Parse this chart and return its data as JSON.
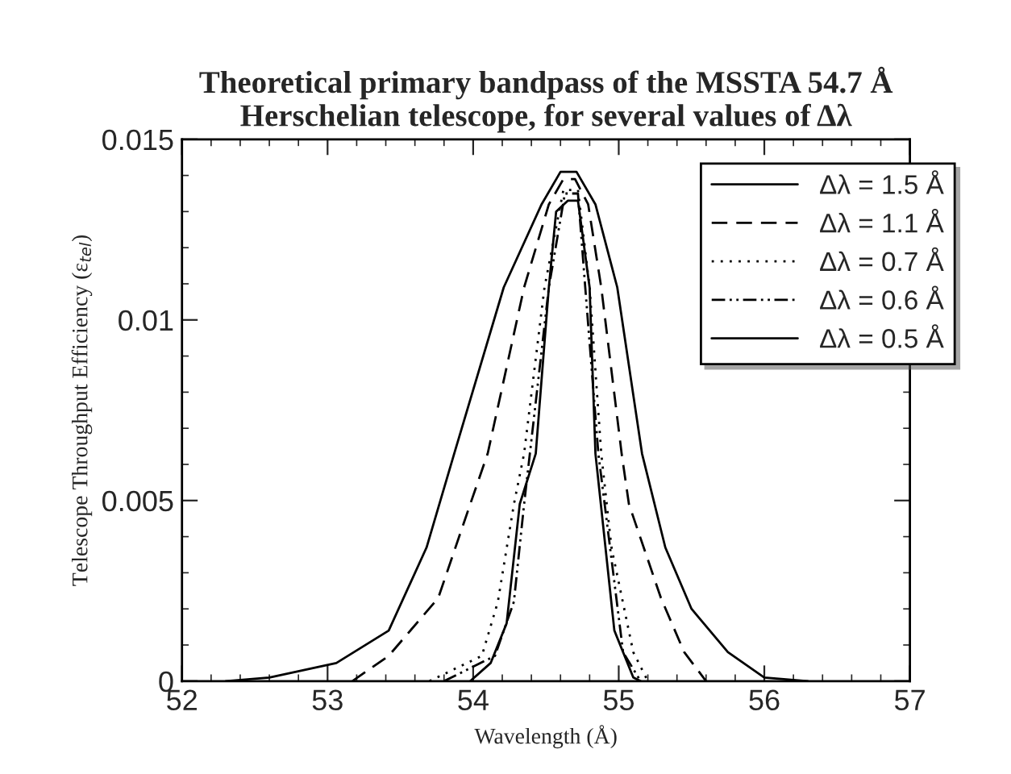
{
  "chart_data": {
    "type": "line",
    "title": "Theoretical primary bandpass of the MSSTA 54.7 Å\nHerschelian telescope, for several values of Δλ",
    "xlabel": "Wavelength (Å)",
    "ylabel": "Telescope Throughput Efficiency (ε$_{tel}$)",
    "xlim": [
      52,
      57
    ],
    "xticks": [
      52,
      53,
      54,
      55,
      56,
      57
    ],
    "ylim": [
      0,
      0.015
    ],
    "yticks": [
      0,
      0.005,
      0.01,
      0.015
    ],
    "grid": false,
    "legend": "top right",
    "marker": "none",
    "series": [
      {
        "name": "Δλ = 1.5 Å",
        "color": "#000000",
        "line_style": "solid",
        "x": [
          52.3,
          52.6,
          53.06,
          53.42,
          53.68,
          53.87,
          54.21,
          54.47,
          54.6,
          54.71,
          54.84,
          54.99,
          55.16,
          55.32,
          55.5,
          55.75,
          56.0,
          56.3
        ],
        "values": [
          0,
          0.0001,
          0.0005,
          0.0014,
          0.0037,
          0.0063,
          0.0109,
          0.0132,
          0.0141,
          0.0141,
          0.0132,
          0.0109,
          0.0063,
          0.0037,
          0.002,
          0.0008,
          0.0001,
          0
        ]
      },
      {
        "name": "Δλ = 1.1 Å",
        "color": "#000000",
        "line_style": "dashed",
        "x": [
          53.17,
          53.42,
          53.76,
          53.98,
          54.1,
          54.35,
          54.52,
          54.62,
          54.7,
          54.79,
          54.88,
          55.02,
          55.07,
          55.29,
          55.45,
          55.6
        ],
        "values": [
          0,
          0.0007,
          0.0023,
          0.0049,
          0.0063,
          0.0109,
          0.0132,
          0.0139,
          0.0139,
          0.0132,
          0.0109,
          0.0063,
          0.0049,
          0.0023,
          0.0008,
          0
        ]
      },
      {
        "name": "Δλ = 0.7 Å",
        "color": "#000000",
        "line_style": "dotted",
        "x": [
          53.7,
          54.06,
          54.17,
          54.28,
          54.35,
          54.49,
          54.62,
          54.72,
          54.8,
          54.88,
          54.95,
          55.1,
          55.2
        ],
        "values": [
          0,
          0.0007,
          0.0022,
          0.0049,
          0.0063,
          0.0109,
          0.0136,
          0.0136,
          0.0109,
          0.0063,
          0.0037,
          0.0008,
          0
        ]
      },
      {
        "name": "Δλ = 0.6 Å",
        "color": "#000000",
        "line_style": "dashdotdot",
        "x": [
          53.8,
          54.15,
          54.28,
          54.35,
          54.52,
          54.63,
          54.72,
          54.77,
          54.86,
          55.03,
          55.15
        ],
        "values": [
          0,
          0.0007,
          0.0022,
          0.0049,
          0.0109,
          0.0135,
          0.0135,
          0.0109,
          0.0063,
          0.0008,
          0
        ]
      },
      {
        "name": "Δλ = 0.5 Å",
        "color": "#000000",
        "line_style": "solid",
        "x": [
          53.98,
          54.12,
          54.23,
          54.32,
          54.43,
          54.52,
          54.57,
          54.65,
          54.72,
          54.8,
          54.84,
          54.97,
          55.1,
          55.15
        ],
        "values": [
          0,
          0.0005,
          0.0016,
          0.0049,
          0.0063,
          0.0109,
          0.013,
          0.0133,
          0.0133,
          0.0109,
          0.0063,
          0.0014,
          0.0001,
          0
        ]
      }
    ]
  }
}
